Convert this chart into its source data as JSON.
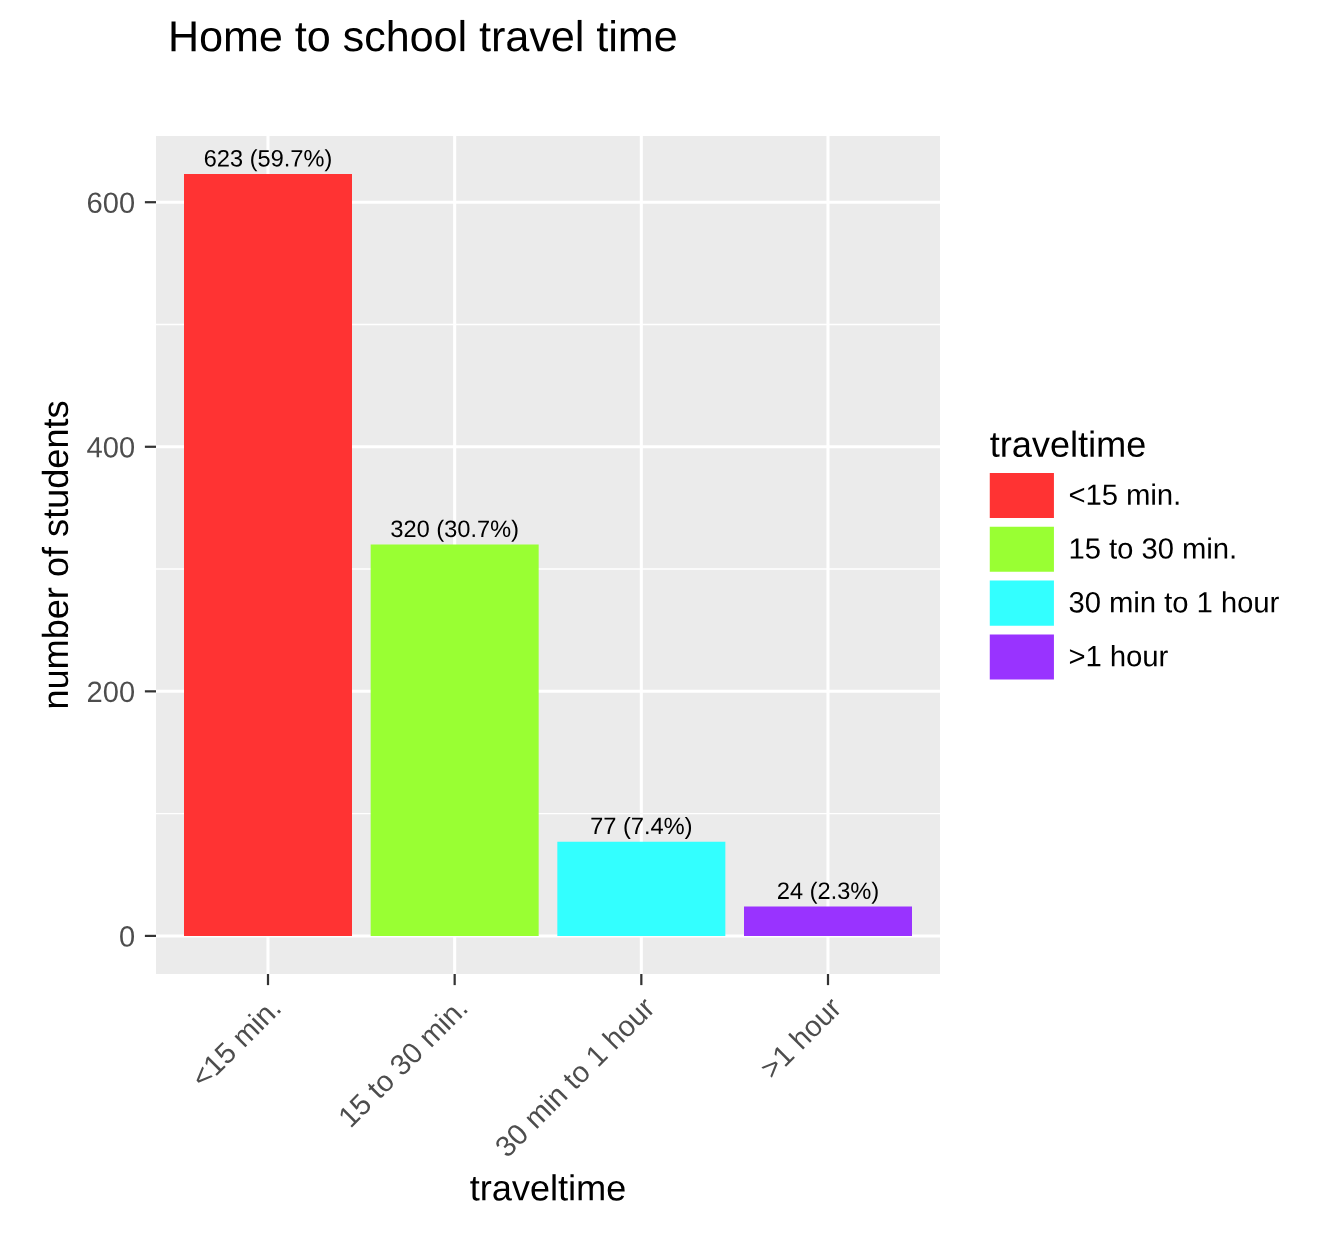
{
  "chart_data": {
    "type": "bar",
    "title": "Home to school travel time",
    "xlabel": "traveltime",
    "ylabel": "number of students",
    "legend_title": "traveltime",
    "categories": [
      "<15 min.",
      "15 to 30 min.",
      "30 min to 1 hour",
      ">1 hour"
    ],
    "stacked": true,
    "series": [
      {
        "name": "<15 min.",
        "color": "#ff3333",
        "values": [
          623,
          null,
          null,
          null
        ],
        "value_labels": [
          "623 (59.7%)",
          null,
          null,
          null
        ]
      },
      {
        "name": "15 to 30 min.",
        "color": "#99ff33",
        "values": [
          null,
          320,
          null,
          null
        ],
        "value_labels": [
          null,
          "320 (30.7%)",
          null,
          null
        ]
      },
      {
        "name": "30 min to 1 hour",
        "color": "#33ffff",
        "values": [
          null,
          null,
          77,
          null
        ],
        "value_labels": [
          null,
          null,
          "77 (7.4%)",
          null
        ]
      },
      {
        "name": ">1 hour",
        "color": "#9933ff",
        "values": [
          null,
          null,
          null,
          24
        ],
        "value_labels": [
          null,
          null,
          null,
          "24 (2.3%)"
        ]
      }
    ],
    "ylim": [
      -31.15,
      654.15
    ],
    "yticks": [
      0,
      {
        "value": 100,
        "label": null
      },
      200,
      {
        "value": 300,
        "label": null
      },
      400,
      {
        "value": 500,
        "label": null
      },
      600
    ],
    "grid": true,
    "legend": "right"
  }
}
